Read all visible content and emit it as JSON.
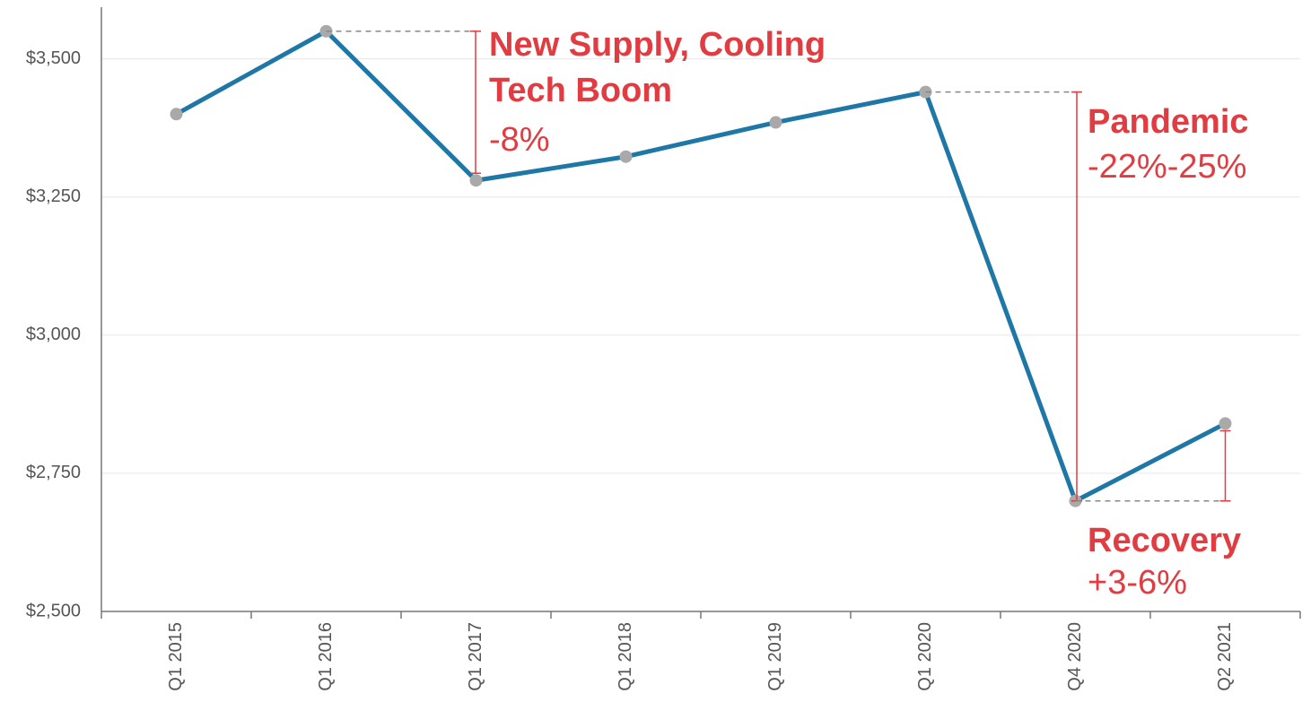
{
  "chart_data": {
    "type": "line",
    "categories": [
      "Q1 2015",
      "Q1 2016",
      "Q1 2017",
      "Q1 2018",
      "Q1 2019",
      "Q1 2020",
      "Q4 2020",
      "Q2 2021"
    ],
    "values": [
      3400,
      3550,
      3280,
      3323,
      3385,
      3440,
      2700,
      2840
    ],
    "color": "#1f77a6",
    "marker_color": "#a9a9a9",
    "annotation_color": "#e03c41",
    "ylim": [
      2500,
      3600
    ],
    "yticks": [
      {
        "value": 2500,
        "label": "$2,500"
      },
      {
        "value": 2750,
        "label": "$2,750"
      },
      {
        "value": 3000,
        "label": "$3,000"
      },
      {
        "value": 3250,
        "label": "$3,250"
      },
      {
        "value": 3500,
        "label": "$3,500"
      }
    ],
    "grid": true,
    "annotations": [
      {
        "lines": [
          "New Supply, Cooling",
          "Tech Boom",
          "-8%"
        ]
      },
      {
        "lines": [
          "Pandemic",
          "-22%-25%"
        ]
      },
      {
        "lines": [
          "Recovery",
          "+3-6%"
        ]
      }
    ]
  }
}
